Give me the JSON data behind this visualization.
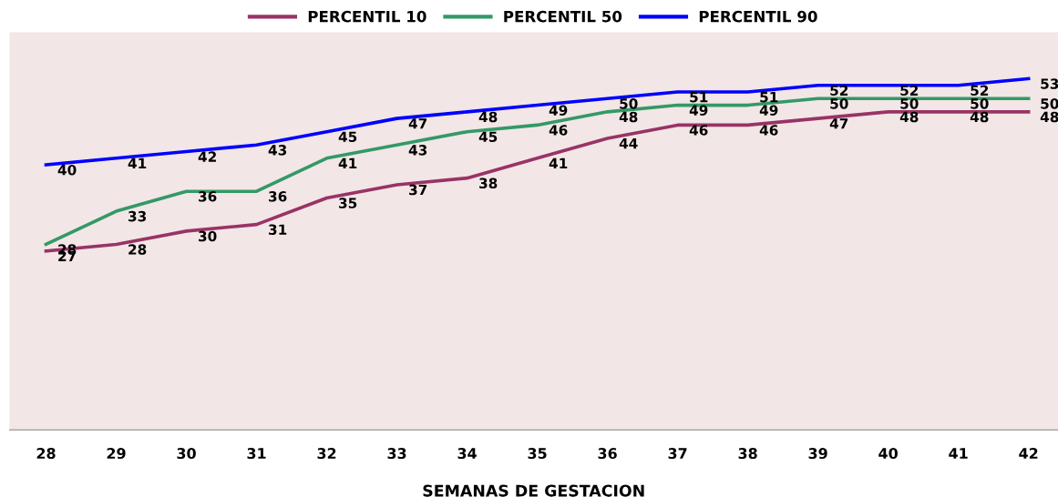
{
  "chart_data": {
    "type": "line",
    "xlabel": "SEMANAS DE GESTACION",
    "categories": [
      "28",
      "29",
      "30",
      "31",
      "32",
      "33",
      "34",
      "35",
      "36",
      "37",
      "38",
      "39",
      "40",
      "41",
      "42"
    ],
    "series": [
      {
        "name": "PERCENTIL 10",
        "color": "#993366",
        "values": [
          27,
          28,
          30,
          31,
          35,
          37,
          38,
          41,
          44,
          46,
          46,
          47,
          48,
          48,
          48
        ]
      },
      {
        "name": "PERCENTIL 50",
        "color": "#339966",
        "values": [
          28,
          33,
          36,
          36,
          41,
          43,
          45,
          46,
          48,
          49,
          49,
          50,
          50,
          50,
          50
        ]
      },
      {
        "name": "PERCENTIL 90",
        "color": "#0000ff",
        "values": [
          40,
          41,
          42,
          43,
          45,
          47,
          48,
          49,
          50,
          51,
          51,
          52,
          52,
          52,
          53
        ]
      }
    ],
    "ylim": [
      0,
      60
    ],
    "tick_labels": "x",
    "data_labels": true,
    "legend": "top",
    "grid": false,
    "marker": "none",
    "line_style": "solid"
  }
}
